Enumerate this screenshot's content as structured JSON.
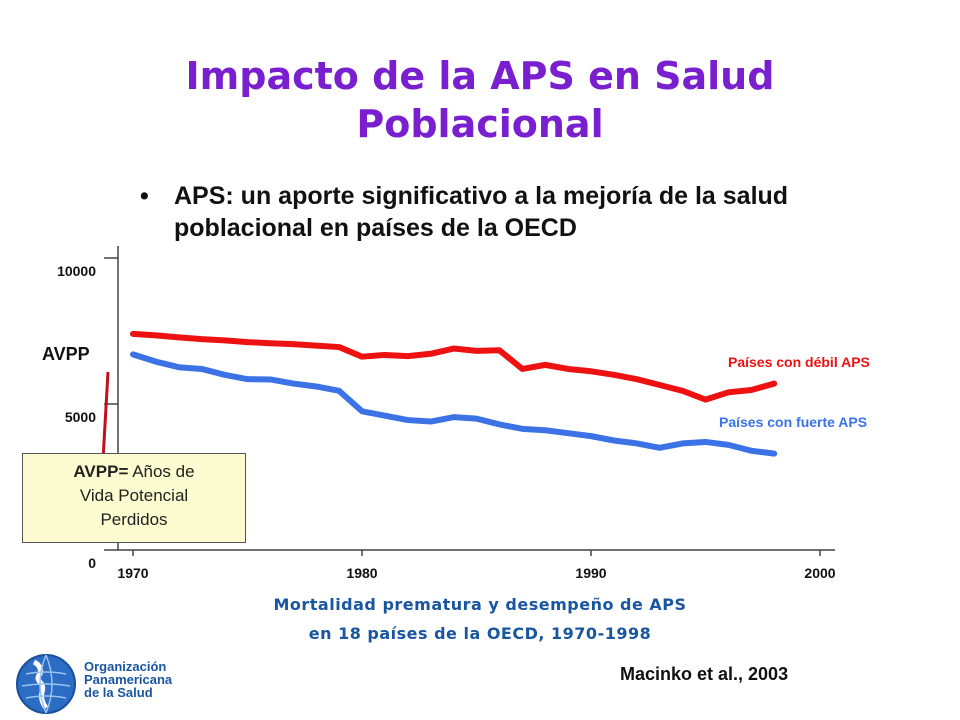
{
  "slide": {
    "title_line1": "Impacto de la APS en Salud",
    "title_line2": "Poblacional",
    "bullet": "APS: un aporte significativo a la mejoría de la salud poblacional en países de la OECD",
    "bullet_marker": "•",
    "note_term": "AVPP=",
    "note_def_1": "Años de",
    "note_def_2": "Vida Potencial",
    "note_def_3": "Perdidos",
    "caption_line1": "Mortalidad prematura y desempeño de APS",
    "caption_line2": "en 18 países de la OECD, 1970-1998",
    "source": "Macinko et al., 2003",
    "org_line1": "Organización",
    "org_line2": "Panamericana",
    "org_line3": "de la Salud"
  },
  "chart_data": {
    "type": "line",
    "ylabel": "AVPP",
    "xlim": [
      1970,
      2000
    ],
    "ylim": [
      0,
      10000
    ],
    "xticks": [
      1970,
      1980,
      1990,
      2000
    ],
    "yticks": [
      0,
      5000,
      10000
    ],
    "grid": false,
    "legend": "inline-right",
    "x": [
      1970,
      1971,
      1972,
      1973,
      1974,
      1975,
      1976,
      1977,
      1978,
      1979,
      1980,
      1981,
      1982,
      1983,
      1984,
      1985,
      1986,
      1987,
      1988,
      1989,
      1990,
      1991,
      1992,
      1993,
      1994,
      1995,
      1996,
      1997,
      1998
    ],
    "series": [
      {
        "name": "Países con débil APS",
        "color": "#ee1111",
        "values": [
          7400,
          7350,
          7280,
          7220,
          7180,
          7120,
          7080,
          7050,
          7000,
          6950,
          6620,
          6680,
          6640,
          6720,
          6900,
          6820,
          6840,
          6200,
          6340,
          6200,
          6120,
          6000,
          5850,
          5650,
          5450,
          5150,
          5400,
          5480,
          5700
        ]
      },
      {
        "name": "Países con fuerte APS",
        "color": "#3b73e6",
        "values": [
          6700,
          6450,
          6260,
          6200,
          6000,
          5850,
          5840,
          5700,
          5600,
          5450,
          4750,
          4600,
          4450,
          4400,
          4550,
          4500,
          4300,
          4150,
          4100,
          4000,
          3900,
          3750,
          3650,
          3500,
          3650,
          3700,
          3600,
          3400,
          3300
        ]
      }
    ]
  }
}
